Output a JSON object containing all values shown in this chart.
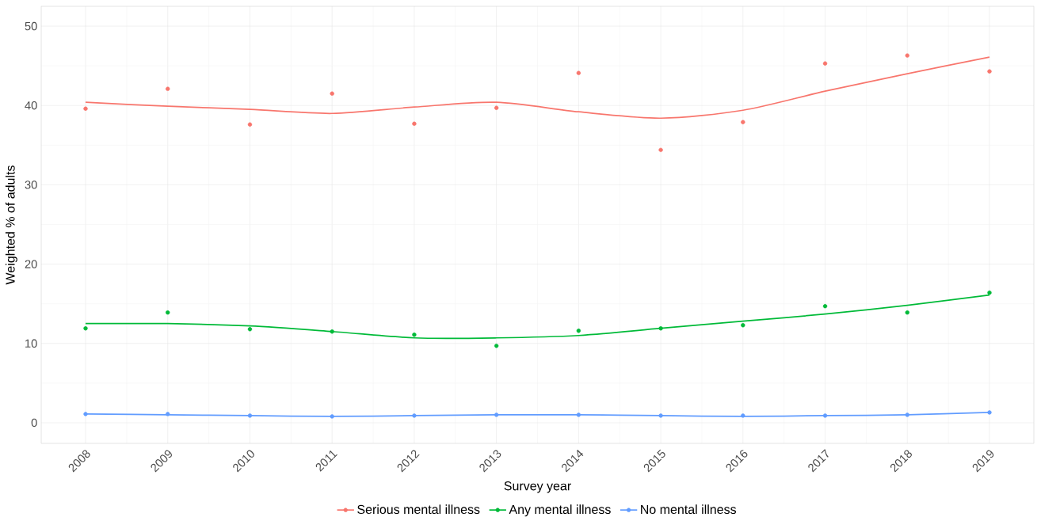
{
  "chart_data": {
    "type": "scatter",
    "xlabel": "Survey year",
    "ylabel": "Weighted % of adults",
    "x": [
      2008,
      2009,
      2010,
      2011,
      2012,
      2013,
      2014,
      2015,
      2016,
      2017,
      2018,
      2019
    ],
    "series": [
      {
        "name": "Serious mental illness",
        "color": "#f8766d",
        "values": [
          39.6,
          42.1,
          37.6,
          41.5,
          37.7,
          39.7,
          44.1,
          34.4,
          37.9,
          45.3,
          46.3,
          44.3
        ]
      },
      {
        "name": "Any mental illness",
        "color": "#00ba38",
        "values": [
          11.9,
          13.9,
          11.8,
          11.5,
          11.1,
          9.7,
          11.6,
          11.9,
          12.3,
          14.7,
          13.9,
          16.4
        ]
      },
      {
        "name": "No mental illness",
        "color": "#619cff",
        "values": [
          1.1,
          1.1,
          0.9,
          0.8,
          0.9,
          1.0,
          1.0,
          0.9,
          0.9,
          0.9,
          1.0,
          1.3
        ]
      },
      {
        "type": "line",
        "marker": "none",
        "color": "#f8766d",
        "values": [
          40.4,
          39.9,
          39.5,
          39.0,
          39.8,
          40.4,
          39.2,
          38.4,
          39.4,
          41.8,
          44.0,
          46.1
        ]
      },
      {
        "type": "line",
        "marker": "none",
        "color": "#00ba38",
        "values": [
          12.5,
          12.5,
          12.2,
          11.5,
          10.7,
          10.7,
          11.0,
          11.9,
          12.8,
          13.7,
          14.8,
          16.1
        ]
      },
      {
        "type": "line",
        "marker": "none",
        "color": "#619cff",
        "values": [
          1.1,
          1.0,
          0.9,
          0.8,
          0.9,
          1.0,
          1.0,
          0.9,
          0.8,
          0.9,
          1.0,
          1.3
        ]
      }
    ],
    "xlim": [
      2007.46,
      2019.54
    ],
    "ylim": [
      -2.6,
      52.5
    ],
    "xticks": [
      2008,
      2009,
      2010,
      2011,
      2012,
      2013,
      2014,
      2015,
      2016,
      2017,
      2018,
      2019
    ],
    "yticks": [
      0,
      10,
      20,
      30,
      40,
      50
    ],
    "grid": true,
    "legend": "bottom",
    "marker": "circle",
    "line_style": "solid"
  }
}
